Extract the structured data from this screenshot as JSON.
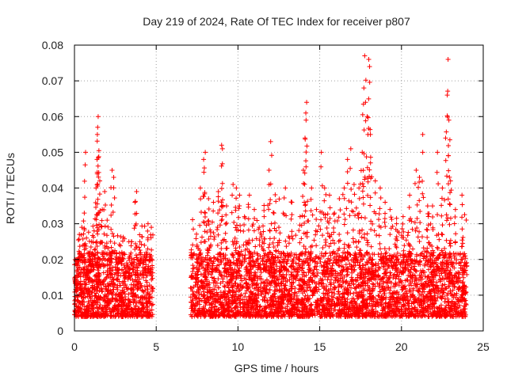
{
  "chart_data": {
    "type": "scatter",
    "title": "Day 219 of 2024, Rate Of TEC Index for receiver p807",
    "xlabel": "GPS time / hours",
    "ylabel": "ROTI / TECUs",
    "xlim": [
      0,
      25
    ],
    "ylim": [
      0,
      0.08
    ],
    "xticks": [
      0,
      5,
      10,
      15,
      20,
      25
    ],
    "xtick_labels": [
      "0",
      "5",
      "10",
      "15",
      "20",
      "25"
    ],
    "yticks": [
      0,
      0.01,
      0.02,
      0.03,
      0.04,
      0.05,
      0.06,
      0.07,
      0.08
    ],
    "ytick_labels": [
      "0",
      "0.01",
      "0.02",
      "0.03",
      "0.04",
      "0.05",
      "0.06",
      "0.07",
      "0.08"
    ],
    "grid": true,
    "marker": "+",
    "series_color": "#ff0000",
    "data_gap_hours": [
      4.8,
      7.1
    ],
    "series": [
      {
        "name": "ROTI",
        "points": [
          [
            0.1,
            0.011
          ],
          [
            0.2,
            0.02
          ],
          [
            0.3,
            0.027
          ],
          [
            0.45,
            0.029
          ],
          [
            0.6,
            0.033
          ],
          [
            0.68,
            0.05
          ],
          [
            0.8,
            0.017
          ],
          [
            0.9,
            0.021
          ],
          [
            1.05,
            0.025
          ],
          [
            1.2,
            0.028
          ],
          [
            1.32,
            0.04
          ],
          [
            1.38,
            0.048
          ],
          [
            1.4,
            0.055
          ],
          [
            1.42,
            0.057
          ],
          [
            1.45,
            0.06
          ],
          [
            1.55,
            0.042
          ],
          [
            1.7,
            0.034
          ],
          [
            1.85,
            0.039
          ],
          [
            2.0,
            0.031
          ],
          [
            2.15,
            0.022
          ],
          [
            2.3,
            0.045
          ],
          [
            2.4,
            0.043
          ],
          [
            2.6,
            0.02
          ],
          [
            2.9,
            0.022
          ],
          [
            3.2,
            0.019
          ],
          [
            3.5,
            0.025
          ],
          [
            3.7,
            0.036
          ],
          [
            3.8,
            0.039
          ],
          [
            4.0,
            0.025
          ],
          [
            4.3,
            0.021
          ],
          [
            4.5,
            0.03
          ],
          [
            4.7,
            0.029
          ],
          [
            7.2,
            0.015
          ],
          [
            7.5,
            0.024
          ],
          [
            7.7,
            0.04
          ],
          [
            7.9,
            0.048
          ],
          [
            8.0,
            0.05
          ],
          [
            8.2,
            0.037
          ],
          [
            8.5,
            0.036
          ],
          [
            8.8,
            0.039
          ],
          [
            9.0,
            0.052
          ],
          [
            9.05,
            0.051
          ],
          [
            9.3,
            0.035
          ],
          [
            9.7,
            0.041
          ],
          [
            9.9,
            0.04
          ],
          [
            10.1,
            0.038
          ],
          [
            10.4,
            0.032
          ],
          [
            10.7,
            0.038
          ],
          [
            11.0,
            0.034
          ],
          [
            11.3,
            0.029
          ],
          [
            11.6,
            0.032
          ],
          [
            11.9,
            0.045
          ],
          [
            12.0,
            0.053
          ],
          [
            12.2,
            0.033
          ],
          [
            12.5,
            0.029
          ],
          [
            12.9,
            0.04
          ],
          [
            13.3,
            0.036
          ],
          [
            13.8,
            0.032
          ],
          [
            14.0,
            0.045
          ],
          [
            14.1,
            0.054
          ],
          [
            14.15,
            0.061
          ],
          [
            14.2,
            0.064
          ],
          [
            14.5,
            0.04
          ],
          [
            14.8,
            0.034
          ],
          [
            15.1,
            0.05
          ],
          [
            15.3,
            0.04
          ],
          [
            15.6,
            0.038
          ],
          [
            15.9,
            0.033
          ],
          [
            16.2,
            0.037
          ],
          [
            16.5,
            0.04
          ],
          [
            16.7,
            0.048
          ],
          [
            16.9,
            0.051
          ],
          [
            17.1,
            0.041
          ],
          [
            17.4,
            0.04
          ],
          [
            17.6,
            0.05
          ],
          [
            17.7,
            0.068
          ],
          [
            17.75,
            0.077
          ],
          [
            17.8,
            0.064
          ],
          [
            17.9,
            0.06
          ],
          [
            18.0,
            0.076
          ],
          [
            18.05,
            0.074
          ],
          [
            18.1,
            0.055
          ],
          [
            18.4,
            0.042
          ],
          [
            18.7,
            0.04
          ],
          [
            19.0,
            0.036
          ],
          [
            19.3,
            0.034
          ],
          [
            19.7,
            0.03
          ],
          [
            20.1,
            0.032
          ],
          [
            20.5,
            0.038
          ],
          [
            20.9,
            0.045
          ],
          [
            21.1,
            0.043
          ],
          [
            21.3,
            0.055
          ],
          [
            21.6,
            0.035
          ],
          [
            21.9,
            0.035
          ],
          [
            22.2,
            0.05
          ],
          [
            22.5,
            0.04
          ],
          [
            22.7,
            0.054
          ],
          [
            22.8,
            0.066
          ],
          [
            22.85,
            0.076
          ],
          [
            22.9,
            0.059
          ],
          [
            23.0,
            0.042
          ],
          [
            23.3,
            0.034
          ],
          [
            23.7,
            0.038
          ],
          [
            23.9,
            0.021
          ]
        ]
      }
    ]
  }
}
